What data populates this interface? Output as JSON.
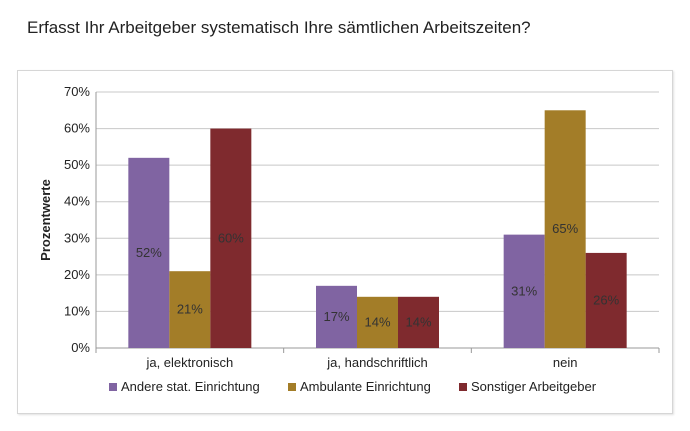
{
  "page": {
    "title": "Erfasst Ihr Arbeitgeber systematisch Ihre sämtlichen Arbeitszeiten?"
  },
  "chart_data": {
    "type": "bar",
    "title": "",
    "xlabel": "",
    "ylabel": "Prozentwerte",
    "ylim": [
      0,
      70
    ],
    "ytick_step": 10,
    "ytick_suffix": "%",
    "grid": true,
    "legend_position": "bottom",
    "categories": [
      "ja, elektronisch",
      "ja, handschriftlich",
      "nein"
    ],
    "series": [
      {
        "name": "Andere stat. Einrichtung",
        "color": "#8064a2",
        "values": [
          52,
          17,
          31
        ],
        "labels": [
          "52%",
          "17%",
          "31%"
        ]
      },
      {
        "name": "Ambulante Einrichtung",
        "color": "#a37d28",
        "values": [
          21,
          14,
          65
        ],
        "labels": [
          "21%",
          "14%",
          "65%"
        ]
      },
      {
        "name": "Sonstiger Arbeitgeber",
        "color": "#7f2a2e",
        "values": [
          60,
          14,
          26
        ],
        "labels": [
          "60%",
          "14%",
          "26%"
        ]
      }
    ]
  }
}
